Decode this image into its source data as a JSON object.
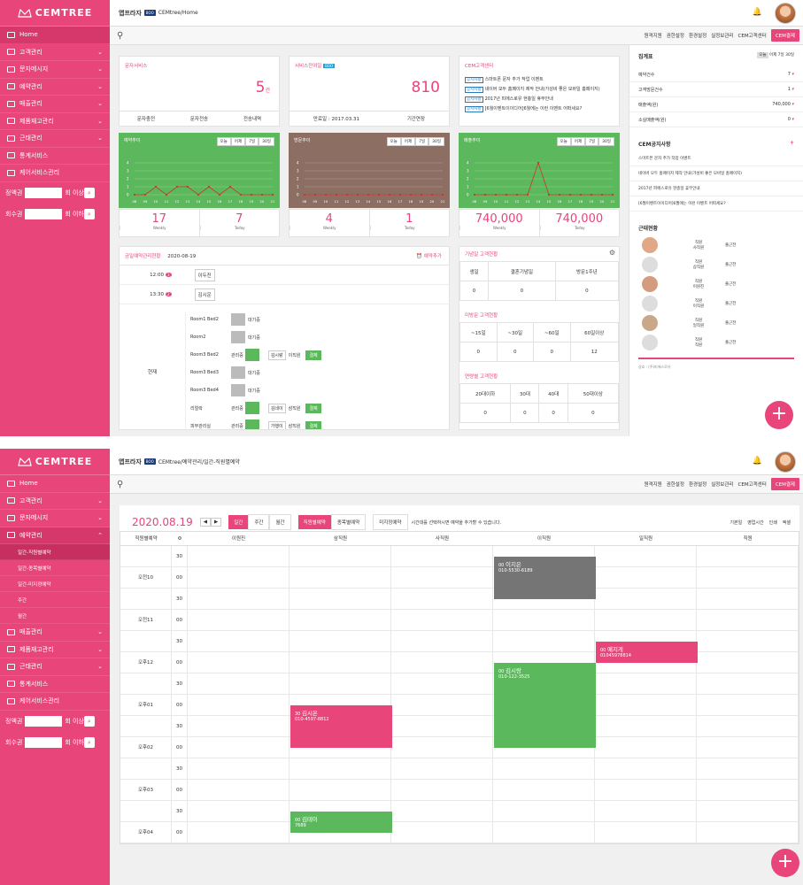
{
  "brand": "CEMTREE",
  "colors": {
    "accent": "#e8457a",
    "green": "#5cb85c",
    "brown": "#8d6e63",
    "gray": "#757575"
  },
  "menu": [
    "Home",
    "고객관리",
    "문자메시지",
    "예약관리",
    "매출관리",
    "제품재고관리",
    "근태관리",
    "통계서비스",
    "케어서비스관리"
  ],
  "menu2_sub": [
    "일간-직원별예약",
    "일간-종목별예약",
    "일간-미지정예약",
    "주간",
    "월간"
  ],
  "search": {
    "s1": "정액권",
    "s2": "회수권",
    "unit": "회 이상",
    "unit2": "회 이하"
  },
  "topbar": {
    "shop": "앱프라자",
    "tag": "BOO",
    "path1": "CEMtree/Home",
    "path2": "CEMtree/예약관리/일간-직원별예약"
  },
  "toplinks": [
    "원격지원",
    "권한설정",
    "환경설정",
    "실정보관리",
    "CEM고객센터"
  ],
  "cem_btn": "CEM결제",
  "cards": {
    "sms": {
      "title": "문자서비스",
      "value": "5",
      "unit": "건",
      "foot": [
        "문자충전",
        "문자전송",
        "전송내역"
      ]
    },
    "svc": {
      "title": "서비스잔여일",
      "badge": "BOO",
      "value": "810",
      "foot": [
        "만료일 : 2017.03.31",
        "기간연장"
      ]
    },
    "notice": {
      "title": "CEM고객센터",
      "tag": "공지사항",
      "items": [
        "스마트폰 문자 추가 작업 이벤트",
        "네이버 모두 홈페이지 제작 안내(가성비 좋은 모바일 홈페이지)",
        "2017년 피에스로유 현충일 휴무안내",
        "[6월이벤트이이디어]6월에는 이런 이벤트 어떠세요?"
      ]
    }
  },
  "charts": [
    {
      "title": "예약추이",
      "seg": [
        "오늘",
        "어제",
        "7일",
        "30일"
      ],
      "weekly": "17",
      "today": "7",
      "wl": "Weekly",
      "tl": "Today"
    },
    {
      "title": "방문추이",
      "seg": [
        "오늘",
        "어제",
        "7일",
        "30일"
      ],
      "weekly": "4",
      "today": "1",
      "wl": "Weekly",
      "tl": "Today"
    },
    {
      "title": "매출추이",
      "seg": [
        "오늘",
        "어제",
        "7일",
        "30일"
      ],
      "weekly": "740,000",
      "today": "740,000",
      "wl": "Weekly",
      "tl": "Today"
    }
  ],
  "chart_data": [
    {
      "type": "line",
      "title": "예약추이",
      "x": [
        "08",
        "09",
        "10",
        "11",
        "12",
        "13",
        "14",
        "15",
        "16",
        "17",
        "18",
        "19",
        "20",
        "21"
      ],
      "values": [
        0,
        0,
        1,
        0,
        1,
        1,
        0,
        1,
        0,
        1,
        0,
        0,
        0,
        0
      ],
      "ylim": [
        0,
        4
      ],
      "ticks": [
        "4",
        "3",
        "2",
        "1",
        "0"
      ]
    },
    {
      "type": "line",
      "title": "방문추이",
      "x": [
        "08",
        "09",
        "10",
        "11",
        "12",
        "13",
        "14",
        "15",
        "16",
        "17",
        "18",
        "19",
        "20",
        "21"
      ],
      "values": [
        0,
        0,
        0,
        0,
        0,
        0,
        0,
        0,
        0,
        0,
        0,
        0,
        0,
        0
      ],
      "ylim": [
        0,
        4
      ],
      "ticks": [
        "4",
        "3",
        "2",
        "1",
        "0"
      ]
    },
    {
      "type": "line",
      "title": "매출추이",
      "x": [
        "08",
        "09",
        "10",
        "11",
        "12",
        "13",
        "14",
        "15",
        "16",
        "17",
        "18",
        "19",
        "20",
        "21"
      ],
      "values": [
        0,
        0,
        0,
        0,
        0,
        0,
        4,
        0,
        0,
        0,
        0,
        0,
        0,
        0
      ],
      "ylim": [
        0,
        4
      ],
      "ticks": [
        "4",
        "3",
        "2",
        "1",
        "0"
      ]
    }
  ],
  "schedule": {
    "title": "금일예약관리현황",
    "date": "2020-08-19",
    "add": "예약추가",
    "t1": "12:00",
    "t2": "13:30",
    "c1": "이두진",
    "c2": "김시운",
    "now": "현재",
    "rooms": [
      "Room1 Bed2",
      "Room2",
      "Room3 Bed2",
      "Room3 Bed3",
      "Room3 Bed4",
      "리얼락",
      "피부관리실"
    ],
    "waiting": "대기중",
    "managing": "관리중",
    "pay": "결제",
    "r_names": [
      "김시랑",
      "이직원",
      "김네이",
      "삼직원",
      "가행이",
      "삼직원"
    ]
  },
  "tables": {
    "bday": {
      "title": "기념일 고객현황",
      "heads": [
        "생일",
        "결혼기념일",
        "방문1주년"
      ],
      "vals": [
        "0",
        "0",
        "0"
      ]
    },
    "notvisit": {
      "title": "미방문 고객현황",
      "heads": [
        "~15일",
        "~30일",
        "~60일",
        "60일이상"
      ],
      "vals": [
        "0",
        "0",
        "0",
        "12"
      ]
    },
    "age": {
      "title": "연령별 고객현황",
      "heads": [
        "20대이하",
        "30대",
        "40대",
        "50대이상"
      ],
      "vals": [
        "0",
        "0",
        "0",
        "0"
      ]
    }
  },
  "right": {
    "title": "집계표",
    "seg": [
      "오늘",
      "어제",
      "7일",
      "30일"
    ],
    "rows": [
      {
        "k": "예약건수",
        "v": "7"
      },
      {
        "k": "고객방문건수",
        "v": "1"
      },
      {
        "k": "매출액(원)",
        "v": "740,000"
      },
      {
        "k": "소실매출액(원)",
        "v": "0"
      }
    ],
    "notice": "CEM공지사항",
    "notices": [
      "스마트폰 문자 추가 작업 이벤트",
      "네이버 모두 홈페이지 제작 안내(가성비 좋은 모바일 홈페이지)",
      "2017년 피에스로유 현충일 휴무안내",
      "[6월이벤트이이디어]6월에는 이런 이벤트 어떠세요?"
    ],
    "staff_title": "근태현황",
    "staff": [
      {
        "r": "직원",
        "n": "사직원",
        "s": "출근전"
      },
      {
        "r": "직원",
        "n": "삼직원",
        "s": "출근전"
      },
      {
        "r": "직원",
        "n": "이원진",
        "s": "출근전"
      },
      {
        "r": "직원",
        "n": "이직원",
        "s": "출근전"
      },
      {
        "r": "직원",
        "n": "일직원",
        "s": "출근전"
      },
      {
        "r": "직원",
        "n": "직원",
        "s": "출근전"
      }
    ],
    "footer": "상호 : (주)피에스로유"
  },
  "daily": {
    "date": "2020.08.19",
    "tabs": [
      "일간",
      "주간",
      "월간"
    ],
    "views": [
      "직원별예약",
      "종목별예약",
      "미지정예약"
    ],
    "hint": "시간대를 선택하시면 예약을 추가할 수 있습니다.",
    "tools": [
      "기본일",
      "영업시간",
      "인쇄",
      "엑셀"
    ],
    "col0": "직원별예약",
    "staff": [
      "이원진",
      "삼직원",
      "사직원",
      "이직원",
      "일직원",
      "직원"
    ],
    "rows": [
      [
        "",
        "30"
      ],
      [
        "오전10",
        "00"
      ],
      [
        "",
        "30"
      ],
      [
        "오전11",
        "00"
      ],
      [
        "",
        "30"
      ],
      [
        "오후12",
        "00"
      ],
      [
        "",
        "30"
      ],
      [
        "오후01",
        "00"
      ],
      [
        "",
        "30"
      ],
      [
        "오후02",
        "00"
      ],
      [
        "",
        "30"
      ],
      [
        "오후03",
        "00"
      ],
      [
        "",
        "30"
      ],
      [
        "오후04",
        "00"
      ]
    ],
    "events": [
      {
        "m": "00",
        "n": "이지은",
        "p": "010-5530-6189"
      },
      {
        "m": "00",
        "n": "예지게",
        "p": "01045978814"
      },
      {
        "m": "00",
        "n": "김시랑",
        "p": "010-122-3525"
      },
      {
        "m": "30",
        "n": "김시온",
        "p": "010-4597-8812"
      },
      {
        "m": "00",
        "n": "김테이",
        "p": "7689"
      }
    ]
  }
}
